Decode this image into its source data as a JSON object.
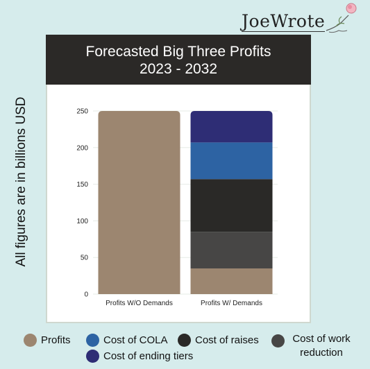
{
  "logo": {
    "text": "JoeWrote"
  },
  "chart_data": {
    "type": "bar",
    "stacked": true,
    "title": "Forecasted Big Three Profits",
    "subtitle": "2023 - 2032",
    "ylabel": "All figures are in billions USD",
    "xlabel": "",
    "ylim": [
      0,
      250
    ],
    "yticks": [
      0,
      50,
      100,
      150,
      200,
      250
    ],
    "grid": true,
    "legend_position": "bottom",
    "categories": [
      "Profits W/O Demands",
      "Profits W/ Demands"
    ],
    "series": [
      {
        "name": "Profits",
        "color": "#9c8670",
        "values": [
          250,
          35
        ]
      },
      {
        "name": "Cost of work reduction",
        "color": "#474645",
        "values": [
          0,
          50
        ]
      },
      {
        "name": "Cost of raises",
        "color": "#2a2927",
        "values": [
          0,
          72
        ]
      },
      {
        "name": "Cost of COLA",
        "color": "#2d63a3",
        "values": [
          0,
          50
        ]
      },
      {
        "name": "Cost of ending tiers",
        "color": "#2e2d75",
        "values": [
          0,
          43
        ]
      }
    ]
  },
  "legend": [
    {
      "label": "Profits",
      "color": "#9c8670"
    },
    {
      "label": "Cost of COLA",
      "color": "#2d63a3"
    },
    {
      "label": "Cost of raises",
      "color": "#2a2927"
    },
    {
      "label": "Cost of work reduction",
      "color": "#474645"
    },
    {
      "label": "Cost of ending tiers",
      "color": "#2e2d75"
    }
  ]
}
